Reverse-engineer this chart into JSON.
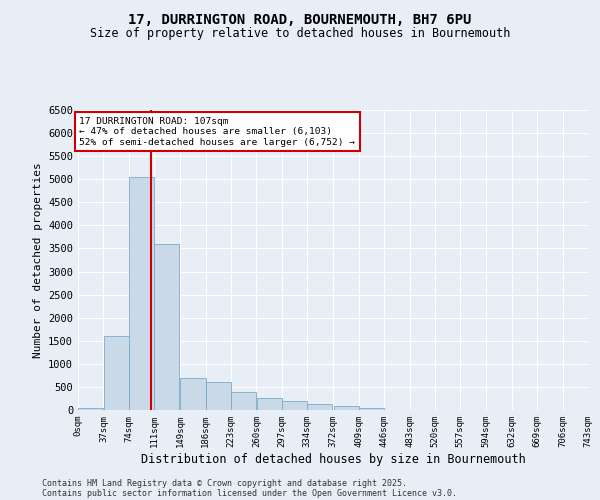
{
  "title_line1": "17, DURRINGTON ROAD, BOURNEMOUTH, BH7 6PU",
  "title_line2": "Size of property relative to detached houses in Bournemouth",
  "xlabel": "Distribution of detached houses by size in Bournemouth",
  "ylabel": "Number of detached properties",
  "bar_color": "#c9d9e8",
  "bar_edge_color": "#7aaac8",
  "background_color": "#e8eef5",
  "grid_color": "#ffffff",
  "annotation_box_color": "#cc0000",
  "vline_color": "#cc0000",
  "bins": [
    0,
    37,
    74,
    111,
    149,
    186,
    223,
    260,
    297,
    334,
    372,
    409,
    446,
    483,
    520,
    557,
    594,
    632,
    669,
    706,
    743
  ],
  "bin_labels": [
    "0sqm",
    "37sqm",
    "74sqm",
    "111sqm",
    "149sqm",
    "186sqm",
    "223sqm",
    "260sqm",
    "297sqm",
    "334sqm",
    "372sqm",
    "409sqm",
    "446sqm",
    "483sqm",
    "520sqm",
    "557sqm",
    "594sqm",
    "632sqm",
    "669sqm",
    "706sqm",
    "743sqm"
  ],
  "bar_heights": [
    50,
    1600,
    5050,
    3600,
    700,
    600,
    380,
    250,
    200,
    130,
    90,
    40,
    0,
    0,
    0,
    0,
    0,
    0,
    0,
    0
  ],
  "ylim": [
    0,
    6500
  ],
  "yticks": [
    0,
    500,
    1000,
    1500,
    2000,
    2500,
    3000,
    3500,
    4000,
    4500,
    5000,
    5500,
    6000,
    6500
  ],
  "property_size": 107,
  "annotation_line1": "17 DURRINGTON ROAD: 107sqm",
  "annotation_line2": "← 47% of detached houses are smaller (6,103)",
  "annotation_line3": "52% of semi-detached houses are larger (6,752) →",
  "footnote1": "Contains HM Land Registry data © Crown copyright and database right 2025.",
  "footnote2": "Contains public sector information licensed under the Open Government Licence v3.0."
}
